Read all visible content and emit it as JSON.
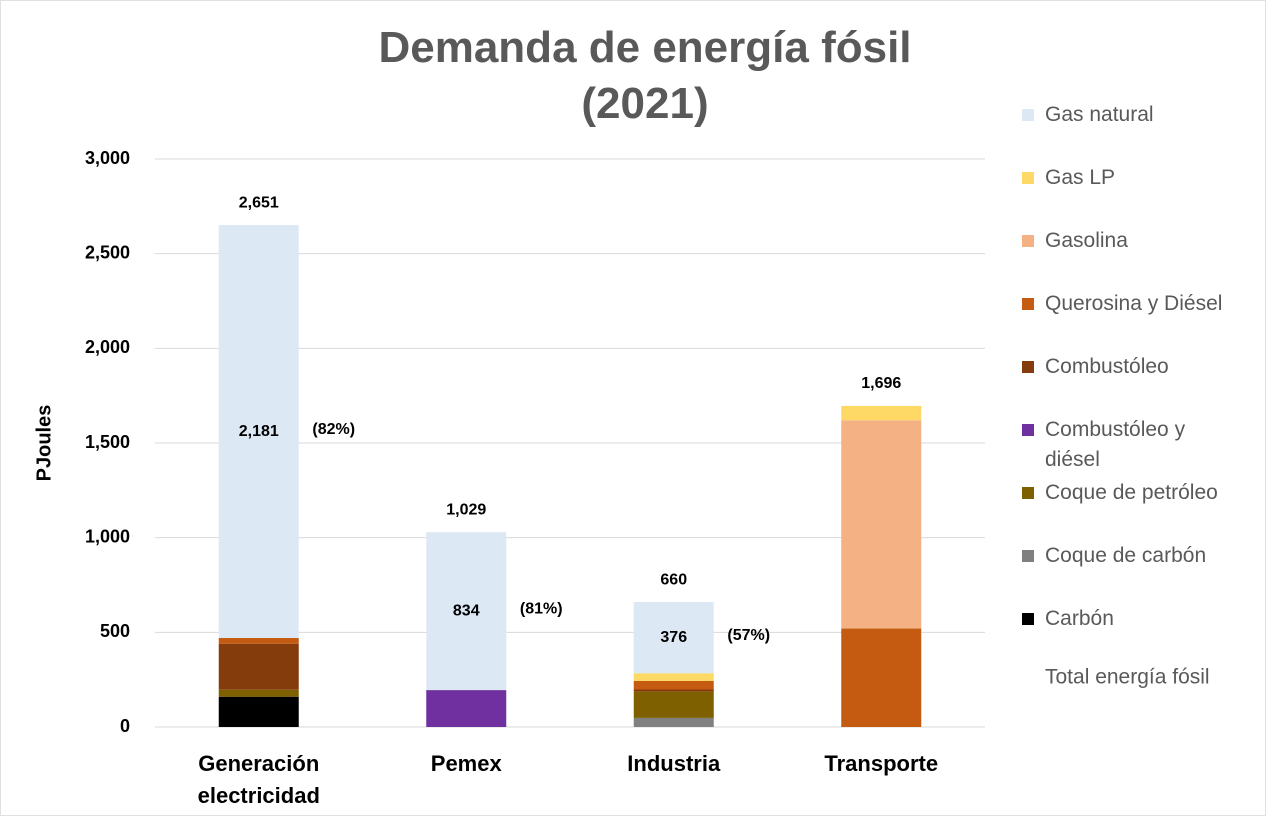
{
  "chart_data": {
    "type": "stacked_bar",
    "title": "Demanda de energía fósil (2021)",
    "y_label": "PJoules",
    "categories": [
      "Generación electricidad",
      "Pemex",
      "Industria",
      "Transporte"
    ],
    "series": [
      {
        "name": "Gas natural",
        "color": "#dde8f5",
        "values": [
          2181,
          834,
          376,
          null
        ],
        "value_labels": [
          "2,181",
          "834",
          "376",
          null
        ]
      },
      {
        "name": "Gas LP",
        "color": "#ffd966",
        "values": [
          null,
          null,
          41,
          76
        ]
      },
      {
        "name": "Gasolina",
        "color": "#f4b183",
        "values": [
          null,
          null,
          null,
          1100
        ]
      },
      {
        "name": "Querosina y Diésel",
        "color": "#c55a11",
        "values": [
          30,
          null,
          45,
          520
        ]
      },
      {
        "name": "Combustóleo",
        "color": "#843c0c",
        "values": [
          243,
          null,
          10,
          null
        ]
      },
      {
        "name": "Combustóleo y diésel",
        "color": "#7030a0",
        "values": [
          null,
          195,
          null,
          null
        ]
      },
      {
        "name": "Coque de petróleo",
        "color": "#7f6000",
        "values": [
          37,
          null,
          140,
          null
        ]
      },
      {
        "name": "Coque de carbón",
        "color": "#808080",
        "values": [
          null,
          null,
          48,
          null
        ]
      },
      {
        "name": "Carbón",
        "color": "#000000",
        "values": [
          160,
          null,
          null,
          null
        ]
      }
    ],
    "total": {
      "name": "Total energía fósil",
      "values": [
        2651,
        1029,
        660,
        1696
      ],
      "value_labels": [
        "2,651",
        "1,029",
        "660",
        "1,696"
      ]
    },
    "annotations": [
      "(82%)",
      "(81%)",
      "(57%)"
    ],
    "ylim": [
      0,
      3000
    ],
    "yticks": [
      0,
      {
        "value": 500,
        "label": "500"
      },
      {
        "value": 1000,
        "label": "1,000"
      },
      {
        "value": 1500,
        "label": "1,500"
      },
      {
        "value": 2000,
        "label": "2,000"
      },
      {
        "value": 2500,
        "label": "2,500"
      },
      {
        "value": 3000,
        "label": "3,000"
      }
    ],
    "grid": true,
    "legend": "right"
  }
}
